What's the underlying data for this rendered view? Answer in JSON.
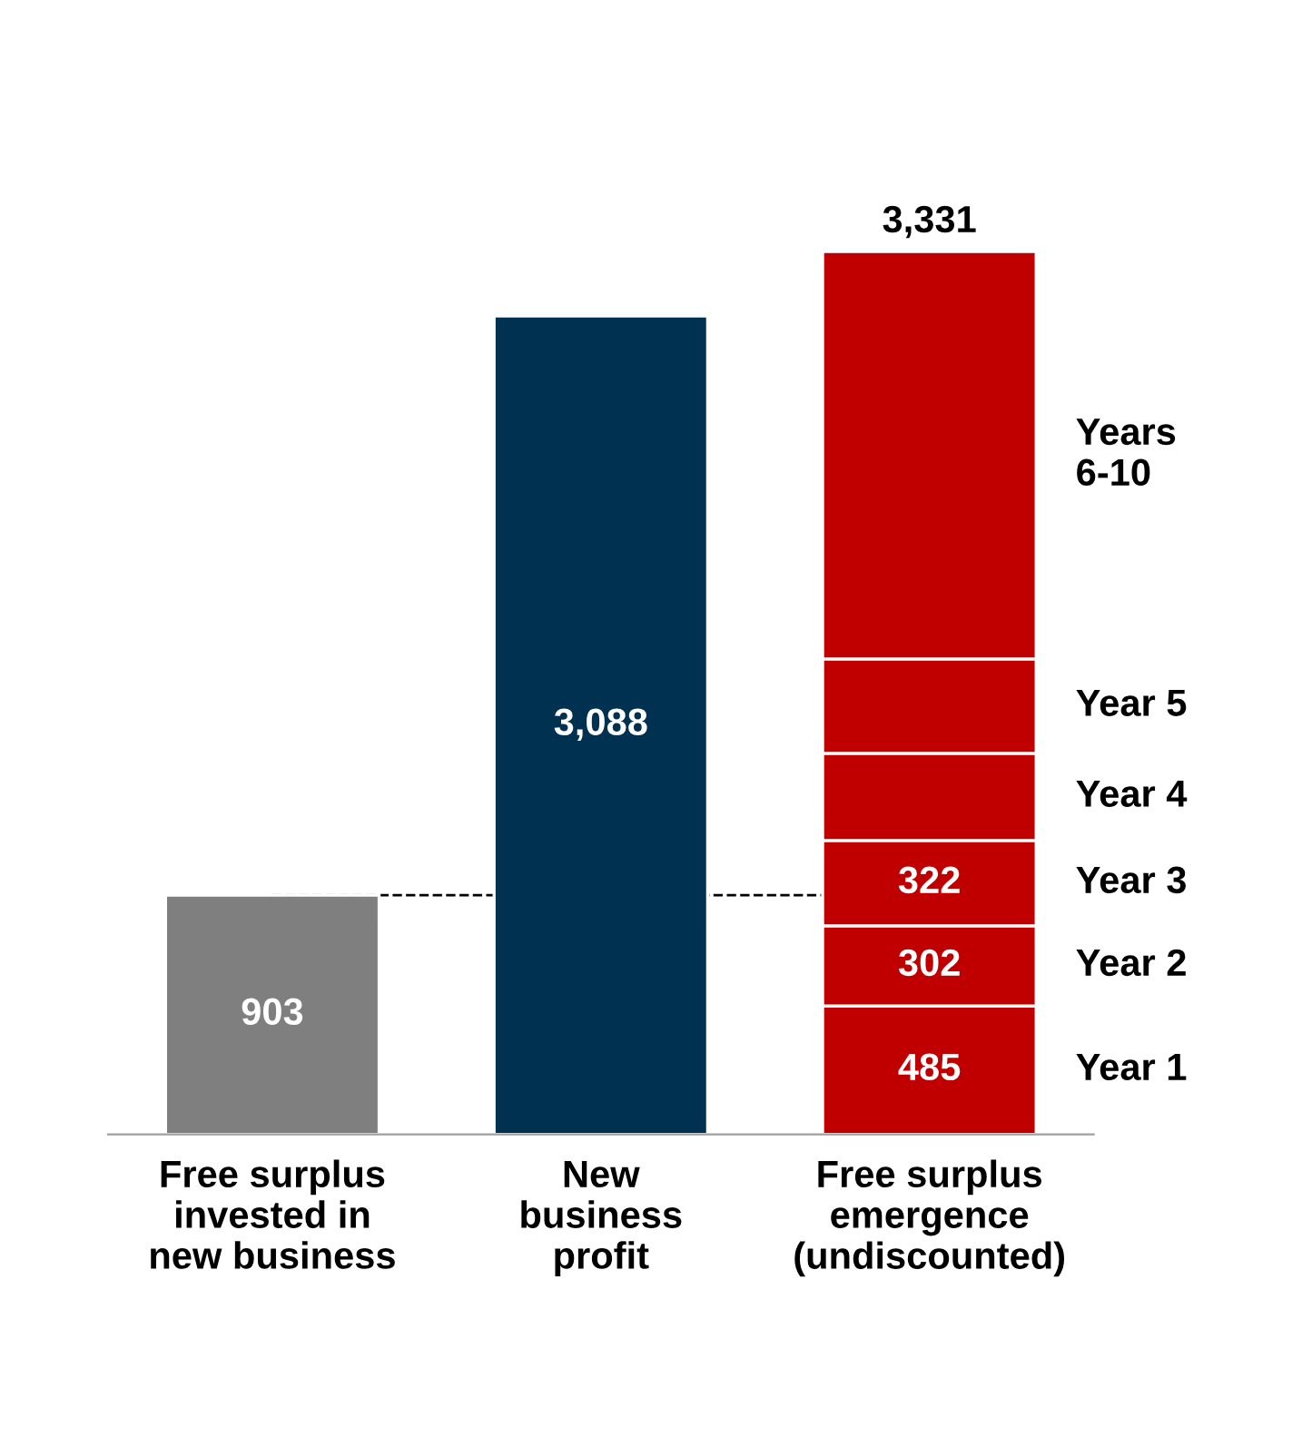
{
  "chart_data": {
    "type": "bar",
    "stacked": true,
    "categories": [
      "Free surplus\ninvested in\nnew business",
      "New\nbusiness\nprofit",
      "Free surplus\nemergence\n(undiscounted)"
    ],
    "series": [
      {
        "name": "Year 1",
        "colors": [
          "#7f7f7f",
          "#003150",
          "#c00000"
        ],
        "values": [
          903,
          3088,
          485
        ],
        "value_labels": [
          "903",
          "3,088",
          "485"
        ]
      },
      {
        "name": "Year 2",
        "color": "#c00000",
        "values": [
          null,
          null,
          302
        ],
        "value_labels": [
          null,
          null,
          "302"
        ]
      },
      {
        "name": "Year 3",
        "color": "#c00000",
        "values": [
          null,
          null,
          322
        ],
        "value_labels": [
          null,
          null,
          "322"
        ]
      },
      {
        "name": "Year 4",
        "color": "#c00000",
        "values": [
          null,
          null,
          329
        ]
      },
      {
        "name": "Year 5",
        "color": "#c00000",
        "values": [
          null,
          null,
          356
        ]
      },
      {
        "name": "Years\n6-10",
        "color": "#c00000",
        "values": [
          null,
          null,
          1537
        ]
      }
    ],
    "totals": [
      null,
      null,
      "3,331"
    ],
    "ref_lines": [
      {
        "axis": "y",
        "value": 903,
        "line_style": "dashed",
        "color": "#000000"
      }
    ],
    "grid": false,
    "legend": false
  }
}
